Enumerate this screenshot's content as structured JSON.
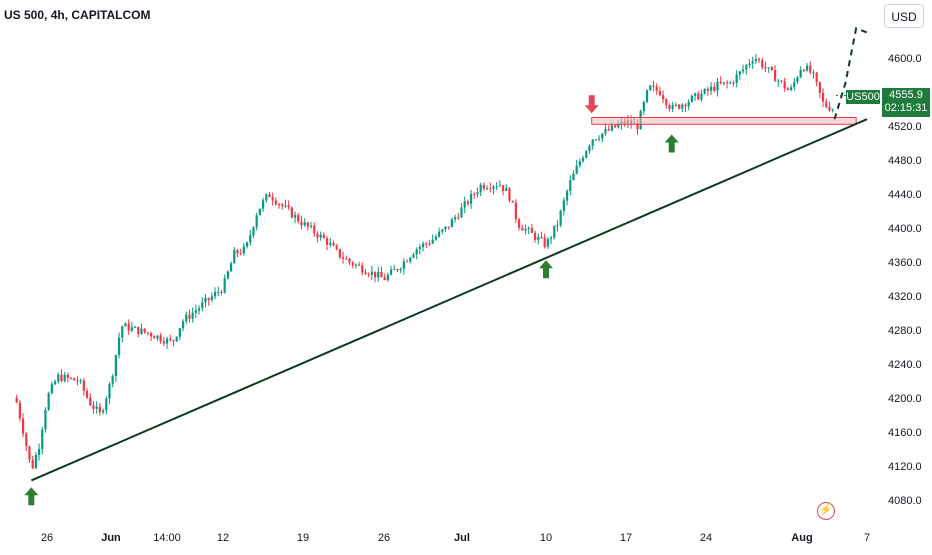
{
  "header": {
    "symbol_title": "US 500, 4h, CAPITALCOM",
    "currency_label": "USD"
  },
  "badges": {
    "symbol": "US500",
    "price": "4555.9",
    "countdown": "02:15:31"
  },
  "icons": {
    "flash": "lightning-icon"
  },
  "colors": {
    "up": "#089981",
    "down": "#f23645",
    "trendline": "#0d3b1e",
    "arrow_up": "#2e7d32",
    "arrow_down": "#e0485a",
    "resistance_zone": "#f2b8bd",
    "badge": "#1e7b3c"
  },
  "chart_data": {
    "type": "candlestick",
    "timeframe": "4h",
    "ylim": [
      4050,
      4640
    ],
    "y_ticks": [
      "4600.0",
      "4560.0",
      "4520.0",
      "4480.0",
      "4440.0",
      "4400.0",
      "4360.0",
      "4320.0",
      "4280.0",
      "4240.0",
      "4200.0",
      "4160.0",
      "4120.0",
      "4080.0"
    ],
    "x_ticks": [
      "26",
      "Jun",
      "14:00",
      "12",
      "19",
      "26",
      "Jul",
      "10",
      "17",
      "24",
      "Aug",
      "7"
    ],
    "grid": false,
    "price_path": [
      {
        "date": "May 22",
        "price": 4200
      },
      {
        "date": "May 23",
        "price": 4160
      },
      {
        "date": "May 24",
        "price": 4115
      },
      {
        "date": "May 25",
        "price": 4145
      },
      {
        "date": "May 26",
        "price": 4200
      },
      {
        "date": "May 27",
        "price": 4225
      },
      {
        "date": "May 29",
        "price": 4220
      },
      {
        "date": "May 30",
        "price": 4195
      },
      {
        "date": "May 31",
        "price": 4180
      },
      {
        "date": "Jun 1",
        "price": 4220
      },
      {
        "date": "Jun 2",
        "price": 4285
      },
      {
        "date": "Jun 5",
        "price": 4275
      },
      {
        "date": "Jun 6",
        "price": 4270
      },
      {
        "date": "Jun 7",
        "price": 4265
      },
      {
        "date": "Jun 8",
        "price": 4290
      },
      {
        "date": "Jun 9",
        "price": 4300
      },
      {
        "date": "Jun 12",
        "price": 4330
      },
      {
        "date": "Jun 13",
        "price": 4370
      },
      {
        "date": "Jun 14",
        "price": 4375
      },
      {
        "date": "Jun 15",
        "price": 4420
      },
      {
        "date": "Jun 16",
        "price": 4440
      },
      {
        "date": "Jun 19",
        "price": 4405
      },
      {
        "date": "Jun 20",
        "price": 4395
      },
      {
        "date": "Jun 21",
        "price": 4385
      },
      {
        "date": "Jun 22",
        "price": 4370
      },
      {
        "date": "Jun 23",
        "price": 4360
      },
      {
        "date": "Jun 26",
        "price": 4340
      },
      {
        "date": "Jun 27",
        "price": 4355
      },
      {
        "date": "Jun 28",
        "price": 4375
      },
      {
        "date": "Jun 29",
        "price": 4385
      },
      {
        "date": "Jun 30",
        "price": 4400
      },
      {
        "date": "Jul 3",
        "price": 4450
      },
      {
        "date": "Jul 5",
        "price": 4452
      },
      {
        "date": "Jul 6",
        "price": 4440
      },
      {
        "date": "Jul 7",
        "price": 4405
      },
      {
        "date": "Jul 10",
        "price": 4380
      },
      {
        "date": "Jul 11",
        "price": 4405
      },
      {
        "date": "Jul 12",
        "price": 4450
      },
      {
        "date": "Jul 13",
        "price": 4480
      },
      {
        "date": "Jul 14",
        "price": 4505
      },
      {
        "date": "Jul 17",
        "price": 4525
      },
      {
        "date": "Jul 18",
        "price": 4520
      },
      {
        "date": "Jul 19",
        "price": 4565
      },
      {
        "date": "Jul 20",
        "price": 4560
      },
      {
        "date": "Jul 21",
        "price": 4540
      },
      {
        "date": "Jul 24",
        "price": 4560
      },
      {
        "date": "Jul 25",
        "price": 4568
      },
      {
        "date": "Jul 26",
        "price": 4570
      },
      {
        "date": "Jul 27",
        "price": 4585
      },
      {
        "date": "Jul 28",
        "price": 4602
      },
      {
        "date": "Jul 31",
        "price": 4560
      },
      {
        "date": "Aug 1",
        "price": 4592
      },
      {
        "date": "Aug 2",
        "price": 4580
      },
      {
        "date": "Aug 3",
        "price": 4545
      },
      {
        "date": "Aug 4",
        "price": 4540
      }
    ],
    "last_price": 4555.9,
    "annotations": {
      "trendline": {
        "from": {
          "date": "May 24",
          "price": 4103
        },
        "to": {
          "date": "Aug 7",
          "price": 4528
        }
      },
      "resistance_zone": {
        "from_date": "Jul 14",
        "to_date": "Aug 6",
        "price_low": 4522,
        "price_high": 4530
      },
      "forecast_path": [
        {
          "date": "Aug 4",
          "price": 4528
        },
        {
          "date": "Aug 5",
          "price": 4570
        },
        {
          "date": "Aug 6",
          "price": 4635
        },
        {
          "date": "Aug 7",
          "price": 4630
        }
      ],
      "up_arrows": [
        {
          "date": "May 24",
          "price": 4095
        },
        {
          "date": "Jul 10",
          "price": 4362
        },
        {
          "date": "Jul 21",
          "price": 4510
        }
      ],
      "down_arrows": [
        {
          "date": "Jul 14",
          "price": 4535
        }
      ]
    }
  }
}
